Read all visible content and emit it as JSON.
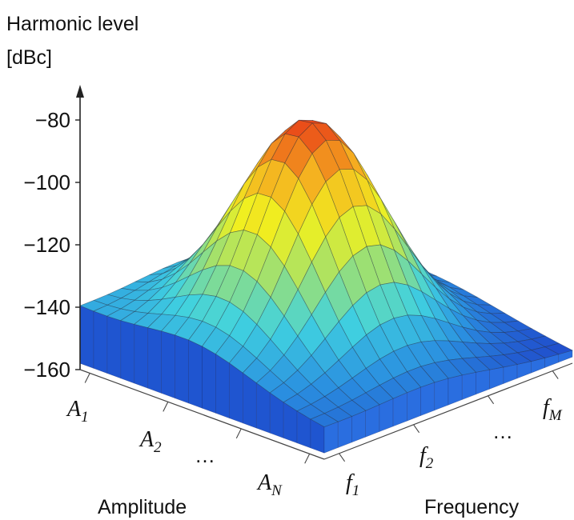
{
  "chart_data": {
    "type": "surface",
    "title": "Harmonic level",
    "zunit": "[dBc]",
    "zticks": [
      -80,
      -100,
      -120,
      -140,
      -160
    ],
    "zlim": [
      -160,
      -80
    ],
    "amplitude_axis": {
      "label": "Amplitude",
      "ticks": [
        {
          "base": "A",
          "sub": "1"
        },
        {
          "base": "A",
          "sub": "2"
        },
        {
          "ellipsis": "…"
        },
        {
          "base": "A",
          "sub": "N"
        }
      ]
    },
    "frequency_axis": {
      "label": "Frequency",
      "ticks": [
        {
          "base": "f",
          "sub": "1"
        },
        {
          "base": "f",
          "sub": "2"
        },
        {
          "ellipsis": "…"
        },
        {
          "base": "f",
          "sub": "M"
        }
      ]
    },
    "surface": {
      "peak_dBc": -80,
      "floor_dBc": -140,
      "colormap": [
        "#1e40c8",
        "#2a8fe0",
        "#40d2e0",
        "#9fe070",
        "#f0f020",
        "#f5b020",
        "#e83c18"
      ]
    }
  }
}
